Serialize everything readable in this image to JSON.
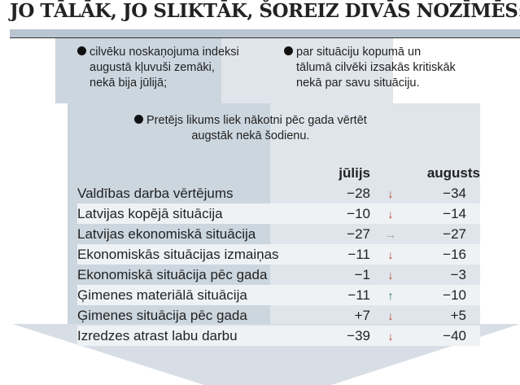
{
  "title": "JO TĀLĀK, JO SLIKTĀK, ŠOREIZ DIVĀS NOZĪMĒS:",
  "bullets": [
    [
      "cilvēku noskaņojuma indeksi",
      "augustā kļuvuši zemāki,",
      "nekā bija jūlijā;"
    ],
    [
      "par situāciju kopumā un",
      "tālumā cilvēki izsakās kritiskāk",
      "nekā par savu situāciju."
    ],
    [
      "Pretējs likums liek nākotni pēc gada vērtēt",
      "augstāk nekā šodienu."
    ]
  ],
  "table": {
    "headers": [
      "jūlijs",
      "augusts"
    ],
    "rows": [
      {
        "label": "Valdības darba vērtējums",
        "jul": "−28",
        "trend": "down",
        "aug": "−34"
      },
      {
        "label": "Latvijas kopējā situācija",
        "jul": "−10",
        "trend": "down",
        "aug": "−14"
      },
      {
        "label": "Latvijas ekonomiskā situācija",
        "jul": "−27",
        "trend": "flat",
        "aug": "−27"
      },
      {
        "label": "Ekonomiskās situācijas izmaiņas",
        "jul": "−11",
        "trend": "down",
        "aug": "−16"
      },
      {
        "label": "Ekonomiskā situācija pēc gada",
        "jul": "−1",
        "trend": "down",
        "aug": "−3"
      },
      {
        "label": "Ģimenes materiālā situācija",
        "jul": "−11",
        "trend": "up",
        "aug": "−10"
      },
      {
        "label": "Ģimenes situācija pēc gada",
        "jul": "+7",
        "trend": "down",
        "aug": "+5"
      },
      {
        "label": "Izredzes atrast labu darbu",
        "jul": "−39",
        "trend": "down",
        "aug": "−40"
      }
    ]
  },
  "colors": {
    "down": "#c0392b",
    "up": "#1a7a3a",
    "flat": "#9aa39a"
  }
}
